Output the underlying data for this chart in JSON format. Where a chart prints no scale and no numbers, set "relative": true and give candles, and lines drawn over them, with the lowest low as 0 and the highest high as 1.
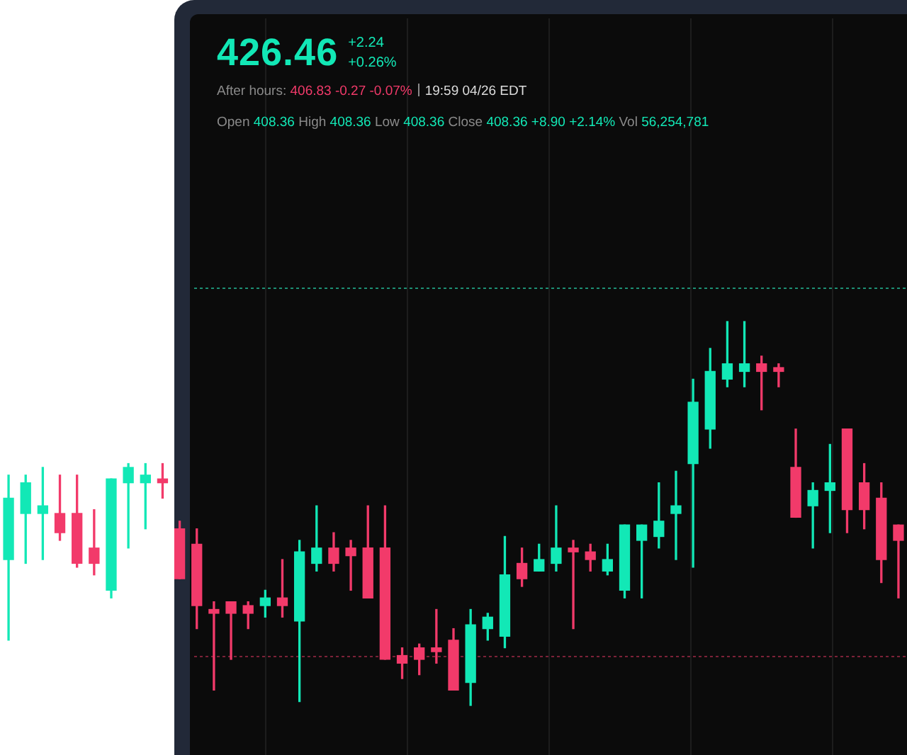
{
  "chart_data": {
    "type": "candlestick",
    "relative": true,
    "grid": "x",
    "categories": [
      null,
      null,
      null,
      null,
      null,
      null,
      null,
      null,
      null,
      null,
      null,
      null,
      null,
      null,
      null,
      null,
      null,
      null,
      null,
      null,
      null,
      null,
      null,
      null,
      null,
      null,
      null,
      null,
      null,
      null,
      null,
      null,
      null,
      null,
      null,
      null,
      null,
      null,
      null,
      null,
      null,
      null,
      null,
      null,
      null,
      null,
      null,
      null,
      null,
      null,
      null,
      null,
      null
    ],
    "ohlc": [
      [
        0.38,
        0.6,
        0.17,
        0.54
      ],
      [
        0.5,
        0.6,
        0.37,
        0.58
      ],
      [
        0.5,
        0.62,
        0.38,
        0.52
      ],
      [
        0.5,
        0.6,
        0.43,
        0.45
      ],
      [
        0.5,
        0.6,
        0.36,
        0.37
      ],
      [
        0.41,
        0.51,
        0.34,
        0.37
      ],
      [
        0.3,
        0.59,
        0.28,
        0.59
      ],
      [
        0.58,
        0.63,
        0.41,
        0.62
      ],
      [
        0.58,
        0.63,
        0.46,
        0.6
      ],
      [
        0.59,
        0.63,
        0.54,
        0.58
      ],
      [
        0.46,
        0.48,
        0.33,
        0.33
      ],
      [
        0.42,
        0.46,
        0.2,
        0.26
      ],
      [
        0.25,
        0.27,
        0.04,
        0.24
      ],
      [
        0.27,
        0.27,
        0.12,
        0.24
      ],
      [
        0.26,
        0.27,
        0.2,
        0.24
      ],
      [
        0.26,
        0.3,
        0.23,
        0.28
      ],
      [
        0.28,
        0.38,
        0.23,
        0.26
      ],
      [
        0.22,
        0.43,
        0.01,
        0.4
      ],
      [
        0.37,
        0.52,
        0.35,
        0.41
      ],
      [
        0.41,
        0.45,
        0.35,
        0.37
      ],
      [
        0.41,
        0.43,
        0.3,
        0.39
      ],
      [
        0.41,
        0.52,
        0.28,
        0.28
      ],
      [
        0.41,
        0.52,
        0.12,
        0.12
      ],
      [
        0.13,
        0.15,
        0.07,
        0.11
      ],
      [
        0.15,
        0.16,
        0.08,
        0.12
      ],
      [
        0.15,
        0.25,
        0.11,
        0.14
      ],
      [
        0.17,
        0.2,
        0.04,
        0.04
      ],
      [
        0.06,
        0.25,
        0,
        0.21
      ],
      [
        0.2,
        0.24,
        0.17,
        0.23
      ],
      [
        0.18,
        0.44,
        0.15,
        0.34
      ],
      [
        0.37,
        0.41,
        0.31,
        0.33
      ],
      [
        0.35,
        0.42,
        0.35,
        0.38
      ],
      [
        0.37,
        0.52,
        0.35,
        0.41
      ],
      [
        0.41,
        0.43,
        0.2,
        0.4
      ],
      [
        0.4,
        0.42,
        0.35,
        0.38
      ],
      [
        0.35,
        0.42,
        0.34,
        0.38
      ],
      [
        0.3,
        0.47,
        0.28,
        0.47
      ],
      [
        0.43,
        0.47,
        0.28,
        0.47
      ],
      [
        0.44,
        0.58,
        0.41,
        0.48
      ],
      [
        0.5,
        0.61,
        0.38,
        0.52
      ],
      [
        0.63,
        0.85,
        0.36,
        0.79
      ],
      [
        0.72,
        0.93,
        0.67,
        0.87
      ],
      [
        0.85,
        1,
        0.83,
        0.89
      ],
      [
        0.87,
        1,
        0.83,
        0.89
      ],
      [
        0.89,
        0.91,
        0.77,
        0.87
      ],
      [
        0.88,
        0.89,
        0.83,
        0.87
      ],
      [
        0.62,
        0.72,
        0.49,
        0.49
      ],
      [
        0.52,
        0.58,
        0.41,
        0.56
      ],
      [
        0.56,
        0.68,
        0.45,
        0.58
      ],
      [
        0.72,
        0.72,
        0.45,
        0.51
      ],
      [
        0.58,
        0.63,
        0.46,
        0.51
      ],
      [
        0.54,
        0.58,
        0.32,
        0.38
      ],
      [
        0.47,
        0.47,
        0.28,
        0.43
      ]
    ],
    "colors": [
      "#12e8b6",
      "#12e8b6",
      "#12e8b6",
      "#f23a6a",
      "#f23a6a",
      "#f23a6a",
      "#12e8b6",
      "#12e8b6",
      "#12e8b6",
      "#f23a6a",
      "#f23a6a",
      "#f23a6a",
      "#f23a6a",
      "#f23a6a",
      "#f23a6a",
      "#12e8b6",
      "#f23a6a",
      "#12e8b6",
      "#12e8b6",
      "#f23a6a",
      "#f23a6a",
      "#f23a6a",
      "#f23a6a",
      "#f23a6a",
      "#f23a6a",
      "#f23a6a",
      "#f23a6a",
      "#12e8b6",
      "#12e8b6",
      "#12e8b6",
      "#f23a6a",
      "#12e8b6",
      "#12e8b6",
      "#f23a6a",
      "#f23a6a",
      "#12e8b6",
      "#12e8b6",
      "#12e8b6",
      "#12e8b6",
      "#12e8b6",
      "#12e8b6",
      "#12e8b6",
      "#12e8b6",
      "#12e8b6",
      "#f23a6a",
      "#f23a6a",
      "#f23a6a",
      "#12e8b6",
      "#12e8b6",
      "#f23a6a",
      "#f23a6a",
      "#f23a6a",
      "#f23a6a"
    ],
    "ref_lines": [
      {
        "axis": "y",
        "value": 1.09,
        "color": "#1d8f74",
        "line_style": "dotted"
      },
      {
        "axis": "y",
        "value": 0.13,
        "color": "#7c2238",
        "line_style": "dotted"
      }
    ],
    "annotations": [
      "426.46",
      "+2.24",
      "+0.26%",
      "After hours: 406.83 -0.27 -0.07%",
      "19:59 04/26 EDT",
      "Open 408.36 High 408.36 Low 408.36 Close 408.36 +8.90 +2.14% Vol 56,254,781"
    ]
  }
}
